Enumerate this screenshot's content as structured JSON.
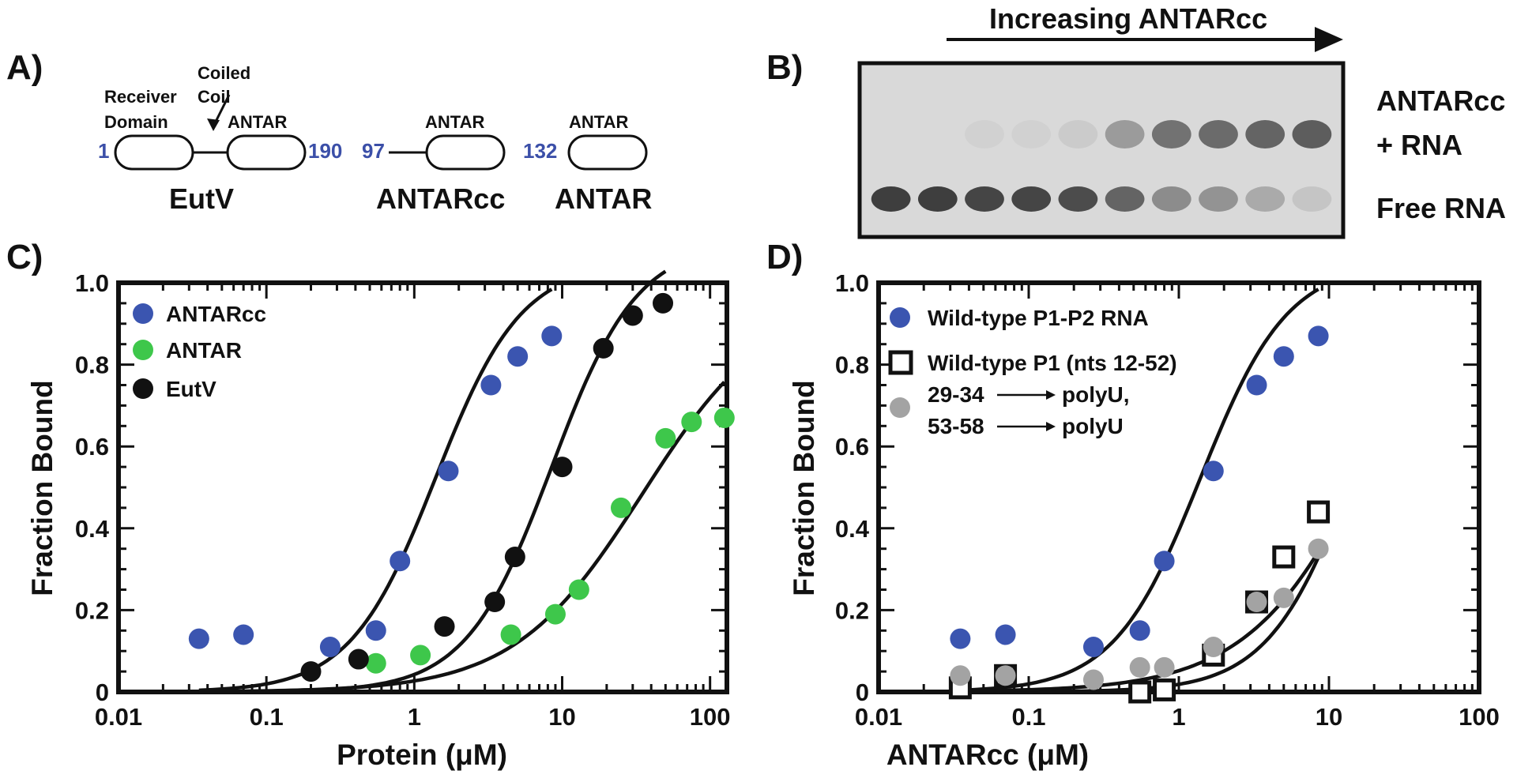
{
  "panel_labels": {
    "a": "A)",
    "b": "B)",
    "c": "C)",
    "d": "D)"
  },
  "panel_a": {
    "eutv": {
      "start": "1",
      "end": "190",
      "name": "EutV",
      "receiver_line1": "Receiver",
      "receiver_line2": "Domain",
      "coiled_line1": "Coiled",
      "coiled_line2": "Coil",
      "antar_label": "ANTAR"
    },
    "antarcc": {
      "start": "97",
      "name": "ANTARcc",
      "antar_label": "ANTAR"
    },
    "antar": {
      "start": "132",
      "name": "ANTAR",
      "antar_label": "ANTAR"
    }
  },
  "panel_b": {
    "arrow_label": "Increasing ANTARcc",
    "complex_line1": "ANTARcc",
    "complex_line2": "+ RNA",
    "free_label": "Free RNA",
    "lane_count": 10
  },
  "colors": {
    "blue": "#3b55b0",
    "green": "#3ec74b",
    "black": "#111111",
    "gray": "#a3a3a3"
  },
  "chart_data": [
    {
      "type": "scatter",
      "panel": "C)",
      "xlabel": "Protein (μM)",
      "ylabel": "Fraction Bound",
      "xscale": "log",
      "xlim": [
        0.01,
        130
      ],
      "ylim": [
        0,
        1.0
      ],
      "x_ticks": [
        "0.01",
        "0.1",
        "1",
        "10",
        "100"
      ],
      "y_ticks": [
        "0",
        "0.2",
        "0.4",
        "0.6",
        "0.8",
        "1.0"
      ],
      "legend_position": "top-left",
      "series": [
        {
          "name": "ANTARcc",
          "marker": "circle",
          "color": "#3b55b0",
          "x": [
            0.035,
            0.07,
            0.27,
            0.55,
            0.8,
            1.7,
            3.3,
            5.0,
            8.5
          ],
          "y": [
            0.13,
            0.14,
            0.11,
            0.15,
            0.32,
            0.54,
            0.75,
            0.82,
            0.87
          ],
          "fit": {
            "Kd": 1.4,
            "n": 1.5,
            "max": 1.05,
            "x_range": [
              0.035,
              8.5
            ]
          }
        },
        {
          "name": "ANTAR",
          "marker": "circle",
          "color": "#3ec74b",
          "x": [
            0.55,
            1.1,
            4.5,
            9.0,
            13,
            25,
            50,
            75,
            125
          ],
          "y": [
            0.07,
            0.09,
            0.14,
            0.19,
            0.25,
            0.45,
            0.62,
            0.66,
            0.67
          ],
          "fit": {
            "Kd": 35,
            "n": 1.0,
            "max": 0.97,
            "x_range": [
              0.035,
              125
            ]
          }
        },
        {
          "name": "EutV",
          "marker": "circle",
          "color": "#111111",
          "x": [
            0.2,
            0.42,
            1.6,
            3.5,
            4.8,
            10,
            19,
            30,
            48
          ],
          "y": [
            0.05,
            0.08,
            0.16,
            0.22,
            0.33,
            0.55,
            0.84,
            0.92,
            0.95
          ],
          "fit": {
            "Kd": 8.5,
            "n": 1.5,
            "max": 1.1,
            "x_range": [
              0.2,
              50
            ]
          }
        }
      ]
    },
    {
      "type": "scatter",
      "panel": "D)",
      "xlabel": "ANTARcc (μM)",
      "ylabel": "Fraction Bound",
      "xscale": "log",
      "xlim": [
        0.01,
        100
      ],
      "ylim": [
        0,
        1.0
      ],
      "x_ticks": [
        "0.01",
        "0.1",
        "1",
        "10",
        "100"
      ],
      "y_ticks": [
        "0",
        "0.2",
        "0.4",
        "0.6",
        "0.8",
        "1.0"
      ],
      "legend_position": "top-left",
      "series": [
        {
          "name": "Wild-type P1-P2 RNA",
          "marker": "circle",
          "color": "#3b55b0",
          "x": [
            0.035,
            0.07,
            0.27,
            0.55,
            0.8,
            1.7,
            3.3,
            5.0,
            8.5
          ],
          "y": [
            0.13,
            0.14,
            0.11,
            0.15,
            0.32,
            0.54,
            0.75,
            0.82,
            0.87
          ],
          "fit": {
            "Kd": 1.4,
            "n": 1.5,
            "max": 1.05,
            "x_range": [
              0.035,
              8.5
            ]
          }
        },
        {
          "name": "Wild-type P1 (nts 12-52)",
          "marker": "square",
          "color": "#111111",
          "x": [
            0.035,
            0.07,
            0.55,
            0.8,
            1.7,
            3.3,
            5.0,
            8.5
          ],
          "y": [
            0.01,
            0.04,
            0.0,
            0.005,
            0.09,
            0.22,
            0.33,
            0.44
          ],
          "fit": {
            "Kd": 15,
            "n": 1.5,
            "max": 1.1,
            "x_range": [
              0.035,
              8.5
            ]
          }
        },
        {
          "name": "29-34 → polyU, 53-58 → polyU",
          "marker": "circle",
          "color": "#a3a3a3",
          "x": [
            0.035,
            0.07,
            0.27,
            0.55,
            0.8,
            1.7,
            3.3,
            5.0,
            8.5
          ],
          "y": [
            0.04,
            0.04,
            0.03,
            0.06,
            0.06,
            0.11,
            0.22,
            0.23,
            0.35
          ],
          "fit": {
            "Kd": 25,
            "n": 1.0,
            "max": 1.35,
            "x_range": [
              0.035,
              8.5
            ]
          }
        }
      ],
      "legend_entries": [
        {
          "line1": "Wild-type P1-P2 RNA"
        },
        {
          "line1": "Wild-type P1 (nts 12-52)"
        },
        {
          "line1_a": "29-34",
          "line1_b": "polyU,",
          "line2_a": "53-58",
          "line2_b": "polyU"
        }
      ]
    }
  ]
}
